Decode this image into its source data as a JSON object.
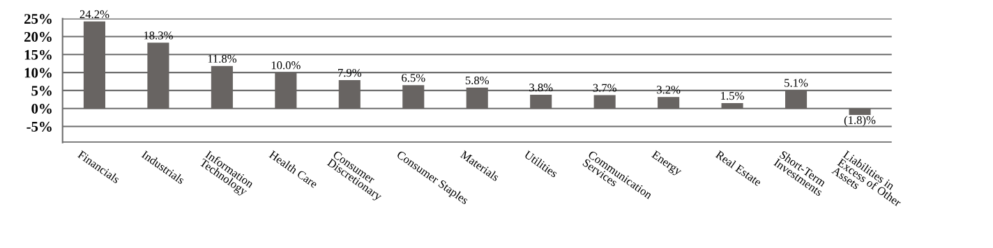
{
  "chart_data": {
    "type": "bar",
    "categories": [
      "Financials",
      "Industrials",
      "Information\nTechnology",
      "Health Care",
      "Consumer\nDiscretionary",
      "Consumer Staples",
      "Materials",
      "Utilities",
      "Communication\nServices",
      "Energy",
      "Real Estate",
      "Short-Term\nInvestments",
      "Liabilities in\nExcess of Other\nAssets"
    ],
    "values": [
      24.2,
      18.3,
      11.8,
      10.0,
      7.9,
      6.5,
      5.8,
      3.8,
      3.7,
      3.2,
      1.5,
      5.1,
      -1.8
    ],
    "value_labels": [
      "24.2%",
      "18.3%",
      "11.8%",
      "10.0%",
      "7.9%",
      "6.5%",
      "5.8%",
      "3.8%",
      "3.7%",
      "3.2%",
      "1.5%",
      "5.1%",
      "(1.8)%"
    ],
    "color": "#686462",
    "ylim": [
      -9.5,
      25
    ],
    "yticks": [
      {
        "value": -5,
        "label": "-5%"
      },
      {
        "value": 0,
        "label": "0%"
      },
      {
        "value": 5,
        "label": "5%"
      },
      {
        "value": 10,
        "label": "10%"
      },
      {
        "value": 15,
        "label": "15%"
      },
      {
        "value": 20,
        "label": "20%"
      },
      {
        "value": 25,
        "label": "25%"
      }
    ],
    "grid": "y"
  }
}
